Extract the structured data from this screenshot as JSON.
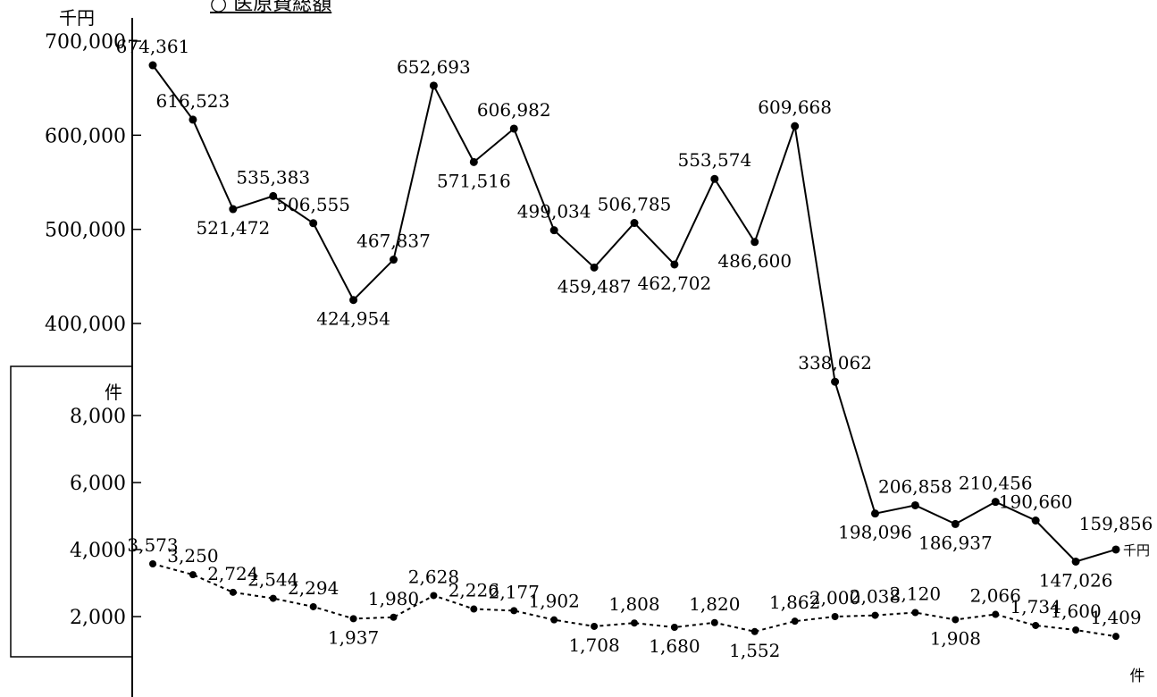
{
  "title": "○ 医原費総額",
  "chart_data": [
    {
      "type": "line",
      "unit_label": "千円",
      "end_unit_label": "千円",
      "yticks": [
        "700,000",
        "600,000",
        "500,000",
        "400,000"
      ],
      "ytick_values": [
        700000,
        600000,
        500000,
        400000
      ],
      "ylim": [
        400000,
        700000
      ],
      "line_style": "solid",
      "values": [
        674361,
        616523,
        521472,
        535383,
        506555,
        424954,
        467837,
        652693,
        571516,
        606982,
        499034,
        459487,
        506785,
        462702,
        553574,
        486600,
        609668,
        338062,
        198096,
        206858,
        186937,
        210456,
        190660,
        147026,
        159856
      ],
      "value_labels": [
        "674,361",
        "616,523",
        "521,472",
        "535,383",
        "506,555",
        "424,954",
        "467,837",
        "652,693",
        "571,516",
        "606,982",
        "499,034",
        "459,487",
        "506,785",
        "462,702",
        "553,574",
        "486,600",
        "609,668",
        "338,062",
        "198,096",
        "206,858",
        "186,937",
        "210,456",
        "190,660",
        "147,026",
        "159,856"
      ]
    },
    {
      "type": "line",
      "unit_label": "件",
      "end_unit_label": "件",
      "yticks": [
        "8,000",
        "6,000",
        "4,000",
        "2,000"
      ],
      "ytick_values": [
        8000,
        6000,
        4000,
        2000
      ],
      "ylim": [
        0,
        8000
      ],
      "line_style": "dotted",
      "values": [
        3573,
        3250,
        2724,
        2544,
        2294,
        1937,
        1980,
        2628,
        2226,
        2177,
        1902,
        1708,
        1808,
        1680,
        1820,
        1552,
        1862,
        2000,
        2038,
        2120,
        1908,
        2066,
        1734,
        1600,
        1409
      ],
      "value_labels": [
        "3,573",
        "3,250",
        "2,724",
        "2,544",
        "2,294",
        "1,937",
        "1,980",
        "2,628",
        "2,226",
        "2,177",
        "1,902",
        "1,708",
        "1,808",
        "1,680",
        "1,820",
        "1,552",
        "1,862",
        "2,000",
        "2,038",
        "2,120",
        "1,908",
        "2,066",
        "1,734",
        "1,600",
        "1,409"
      ]
    }
  ]
}
